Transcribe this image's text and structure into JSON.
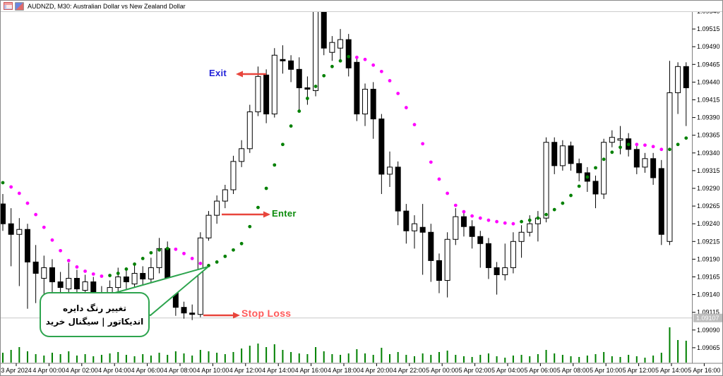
{
  "header": {
    "title": "AUDNZD, M30:  Australian Dollar vs New Zealand Dollar"
  },
  "annotations": {
    "exit_label": "Exit",
    "enter_label": "Enter",
    "stop_loss_label": "Stop Loss",
    "callout_line1": "تغییر رنگ دایره",
    "callout_line2": "اندیکاتور | سیگنال خرید"
  },
  "chart_data": {
    "type": "candlestick",
    "symbol": "AUDNZD",
    "timeframe": "M30",
    "current_price_label": "1.09107",
    "stop_loss_price": 1.09107,
    "colors": {
      "candle_up": "#ffffff",
      "candle_down": "#000000",
      "candle_outline": "#000000",
      "dot_up": "#008000",
      "dot_down": "#ff00ff",
      "volume": "#008000",
      "arrow": "#e8453c",
      "stop_line": "#c9c9c9",
      "axis_line": "#808080",
      "price_tag_bg": "#bdbdbd",
      "callout_border": "#2da44e"
    },
    "price_ticks": [
      "1.09540",
      "1.09515",
      "1.09490",
      "1.09465",
      "1.09440",
      "1.09415",
      "1.09390",
      "1.09365",
      "1.09340",
      "1.09315",
      "1.09290",
      "1.09265",
      "1.09240",
      "1.09215",
      "1.09190",
      "1.09165",
      "1.09140",
      "1.09115",
      "1.09090",
      "1.09065"
    ],
    "time_ticks": [
      "3 Apr 2024",
      "4 Apr 00:00",
      "4 Apr 02:00",
      "4 Apr 04:00",
      "4 Apr 06:00",
      "4 Apr 08:00",
      "4 Apr 10:00",
      "4 Apr 12:00",
      "4 Apr 14:00",
      "4 Apr 16:00",
      "4 Apr 18:00",
      "4 Apr 20:00",
      "4 Apr 22:00",
      "5 Apr 00:00",
      "5 Apr 02:00",
      "5 Apr 04:00",
      "5 Apr 06:00",
      "5 Apr 08:00",
      "5 Apr 10:00",
      "5 Apr 12:00",
      "5 Apr 14:00",
      "5 Apr 16:00"
    ],
    "candles": [
      [
        1.09268,
        1.09282,
        1.0923,
        1.0924
      ],
      [
        1.0924,
        1.09262,
        1.0918,
        1.09225
      ],
      [
        1.09225,
        1.09248,
        1.09152,
        1.09232
      ],
      [
        1.09232,
        1.0924,
        1.0912,
        1.09186
      ],
      [
        1.09186,
        1.0921,
        1.09128,
        1.0917
      ],
      [
        1.09163,
        1.09195,
        1.0914,
        1.09178
      ],
      [
        1.09178,
        1.0919,
        1.09125,
        1.09158
      ],
      [
        1.09158,
        1.09172,
        1.09118,
        1.0915
      ],
      [
        1.09148,
        1.09185,
        1.09132,
        1.09163
      ],
      [
        1.09163,
        1.09175,
        1.09122,
        1.09148
      ],
      [
        1.09146,
        1.09168,
        1.09135,
        1.09158
      ],
      [
        1.09158,
        1.09165,
        1.09116,
        1.0914
      ],
      [
        1.0914,
        1.09152,
        1.09112,
        1.09128
      ],
      [
        1.09128,
        1.0916,
        1.0912,
        1.0915
      ],
      [
        1.0915,
        1.09178,
        1.09142,
        1.09165
      ],
      [
        1.09165,
        1.09175,
        1.09145,
        1.09158
      ],
      [
        1.09155,
        1.09185,
        1.09146,
        1.0917
      ],
      [
        1.0917,
        1.0918,
        1.09138,
        1.09162
      ],
      [
        1.09162,
        1.09192,
        1.0915,
        1.09178
      ],
      [
        1.09178,
        1.0922,
        1.0917,
        1.09205
      ],
      [
        1.09205,
        1.09215,
        1.09145,
        1.09152
      ],
      [
        1.09152,
        1.09158,
        1.0911,
        1.09122
      ],
      [
        1.09122,
        1.0913,
        1.09106,
        1.09114
      ],
      [
        1.09114,
        1.09126,
        1.09104,
        1.09112
      ],
      [
        1.09112,
        1.09228,
        1.09108,
        1.0922
      ],
      [
        1.0922,
        1.09258,
        1.09216,
        1.09252
      ],
      [
        1.09252,
        1.0928,
        1.0924,
        1.09272
      ],
      [
        1.09272,
        1.09295,
        1.09262,
        1.09288
      ],
      [
        1.09288,
        1.09336,
        1.09282,
        1.09328
      ],
      [
        1.09328,
        1.09358,
        1.0932,
        1.09346
      ],
      [
        1.09346,
        1.09408,
        1.0934,
        1.09398
      ],
      [
        1.09398,
        1.09462,
        1.09392,
        1.09448
      ],
      [
        1.0945,
        1.09458,
        1.09382,
        1.09395
      ],
      [
        1.09395,
        1.09488,
        1.0939,
        1.09478
      ],
      [
        1.09472,
        1.09492,
        1.09452,
        1.0947
      ],
      [
        1.0947,
        1.09478,
        1.0944,
        1.09458
      ],
      [
        1.09458,
        1.09475,
        1.09398,
        1.09432
      ],
      [
        1.09432,
        1.09448,
        1.09408,
        1.0943
      ],
      [
        1.09428,
        1.09548,
        1.0942,
        1.0954
      ],
      [
        1.0954,
        1.09545,
        1.09478,
        1.09488
      ],
      [
        1.09482,
        1.09505,
        1.0947,
        1.09496
      ],
      [
        1.09488,
        1.09515,
        1.09472,
        1.095
      ],
      [
        1.095,
        1.09508,
        1.09448,
        1.0946
      ],
      [
        1.09468,
        1.09475,
        1.09385,
        1.09395
      ],
      [
        1.09395,
        1.09438,
        1.09378,
        1.0943
      ],
      [
        1.0943,
        1.0944,
        1.0936,
        1.09388
      ],
      [
        1.09388,
        1.09395,
        1.09282,
        1.0931
      ],
      [
        1.0931,
        1.09342,
        1.09292,
        1.0932
      ],
      [
        1.0932,
        1.09328,
        1.09238,
        1.09258
      ],
      [
        1.09258,
        1.09268,
        1.09212,
        1.0923
      ],
      [
        1.0923,
        1.09252,
        1.09205,
        1.0924
      ],
      [
        1.09235,
        1.09268,
        1.09168,
        1.09228
      ],
      [
        1.09228,
        1.0924,
        1.09158,
        1.09188
      ],
      [
        1.09188,
        1.09198,
        1.09142,
        1.0916
      ],
      [
        1.0916,
        1.09228,
        1.09136,
        1.09218
      ],
      [
        1.09218,
        1.09262,
        1.0921,
        1.0925
      ],
      [
        1.0925,
        1.09258,
        1.09222,
        1.09236
      ],
      [
        1.09236,
        1.09245,
        1.09205,
        1.09222
      ],
      [
        1.09222,
        1.0923,
        1.09178,
        1.09212
      ],
      [
        1.09212,
        1.0922,
        1.09162,
        1.09178
      ],
      [
        1.09178,
        1.09186,
        1.0914,
        1.09168
      ],
      [
        1.09168,
        1.09212,
        1.0916,
        1.09178
      ],
      [
        1.09178,
        1.09228,
        1.0917,
        1.09215
      ],
      [
        1.09215,
        1.09238,
        1.09192,
        1.09228
      ],
      [
        1.09228,
        1.09252,
        1.09222,
        1.0924
      ],
      [
        1.0924,
        1.09258,
        1.09215,
        1.09248
      ],
      [
        1.09248,
        1.09362,
        1.09242,
        1.09355
      ],
      [
        1.09355,
        1.09362,
        1.0931,
        1.09322
      ],
      [
        1.09322,
        1.09358,
        1.09315,
        1.0935
      ],
      [
        1.0935,
        1.09356,
        1.09315,
        1.09325
      ],
      [
        1.09325,
        1.09332,
        1.093,
        1.09312
      ],
      [
        1.09312,
        1.0932,
        1.09285,
        1.093
      ],
      [
        1.093,
        1.09308,
        1.09262,
        1.09282
      ],
      [
        1.09282,
        1.0936,
        1.09275,
        1.09355
      ],
      [
        1.09355,
        1.09372,
        1.09348,
        1.09362
      ],
      [
        1.09358,
        1.09378,
        1.09338,
        1.0936
      ],
      [
        1.0936,
        1.09368,
        1.09335,
        1.09345
      ],
      [
        1.09345,
        1.09352,
        1.0931,
        1.0932
      ],
      [
        1.0932,
        1.0934,
        1.09312,
        1.09332
      ],
      [
        1.09332,
        1.0934,
        1.09295,
        1.09305
      ],
      [
        1.09318,
        1.0933,
        1.0921,
        1.09225
      ],
      [
        1.09215,
        1.0947,
        1.0921,
        1.09425
      ],
      [
        1.09425,
        1.09468,
        1.09395,
        1.09462
      ],
      [
        1.09462,
        1.09468,
        1.09378,
        1.09432
      ]
    ],
    "dots": [
      [
        1.09298,
        "g"
      ],
      [
        1.09292,
        "m"
      ],
      [
        1.09283,
        "m"
      ],
      [
        1.09269,
        "m"
      ],
      [
        1.09253,
        "m"
      ],
      [
        1.09235,
        "m"
      ],
      [
        1.09217,
        "m"
      ],
      [
        1.09202,
        "m"
      ],
      [
        1.09188,
        "m"
      ],
      [
        1.09179,
        "m"
      ],
      [
        1.09173,
        "m"
      ],
      [
        1.09169,
        "m"
      ],
      [
        1.09166,
        "m"
      ],
      [
        1.09167,
        "g"
      ],
      [
        1.0917,
        "g"
      ],
      [
        1.09176,
        "g"
      ],
      [
        1.09183,
        "g"
      ],
      [
        1.09191,
        "g"
      ],
      [
        1.09199,
        "g"
      ],
      [
        1.09203,
        "g"
      ],
      [
        1.09205,
        "g"
      ],
      [
        1.09204,
        "m"
      ],
      [
        1.09198,
        "m"
      ],
      [
        1.09191,
        "m"
      ],
      [
        1.09184,
        "m"
      ],
      [
        1.09181,
        "g"
      ],
      [
        1.09186,
        "g"
      ],
      [
        1.09194,
        "g"
      ],
      [
        1.09203,
        "g"
      ],
      [
        1.09212,
        "g"
      ],
      [
        1.09236,
        "g"
      ],
      [
        1.09263,
        "g"
      ],
      [
        1.0929,
        "g"
      ],
      [
        1.09323,
        "g"
      ],
      [
        1.09352,
        "g"
      ],
      [
        1.09378,
        "g"
      ],
      [
        1.09399,
        "g"
      ],
      [
        1.09417,
        "g"
      ],
      [
        1.09434,
        "g"
      ],
      [
        1.09449,
        "g"
      ],
      [
        1.09462,
        "g"
      ],
      [
        1.0947,
        "g"
      ],
      [
        1.09476,
        "g"
      ],
      [
        1.09475,
        "m"
      ],
      [
        1.09472,
        "m"
      ],
      [
        1.09464,
        "m"
      ],
      [
        1.09455,
        "m"
      ],
      [
        1.09442,
        "m"
      ],
      [
        1.09424,
        "m"
      ],
      [
        1.09404,
        "m"
      ],
      [
        1.0938,
        "m"
      ],
      [
        1.09353,
        "m"
      ],
      [
        1.09327,
        "m"
      ],
      [
        1.09303,
        "m"
      ],
      [
        1.09283,
        "m"
      ],
      [
        1.09266,
        "m"
      ],
      [
        1.09257,
        "m"
      ],
      [
        1.09251,
        "m"
      ],
      [
        1.09248,
        "m"
      ],
      [
        1.09245,
        "m"
      ],
      [
        1.09243,
        "m"
      ],
      [
        1.09241,
        "m"
      ],
      [
        1.0924,
        "m"
      ],
      [
        1.09243,
        "g"
      ],
      [
        1.09245,
        "g"
      ],
      [
        1.09248,
        "g"
      ],
      [
        1.09253,
        "g"
      ],
      [
        1.0926,
        "g"
      ],
      [
        1.09269,
        "g"
      ],
      [
        1.0928,
        "g"
      ],
      [
        1.09293,
        "g"
      ],
      [
        1.09306,
        "g"
      ],
      [
        1.09319,
        "g"
      ],
      [
        1.09331,
        "g"
      ],
      [
        1.09341,
        "g"
      ],
      [
        1.09348,
        "g"
      ],
      [
        1.09352,
        "g"
      ],
      [
        1.09352,
        "m"
      ],
      [
        1.09351,
        "m"
      ],
      [
        1.09349,
        "m"
      ],
      [
        1.09345,
        "m"
      ],
      [
        1.09345,
        "g"
      ],
      [
        1.09352,
        "g"
      ],
      [
        1.09361,
        "g"
      ]
    ],
    "volumes": [
      14,
      18,
      22,
      16,
      12,
      10,
      14,
      12,
      16,
      10,
      12,
      9,
      11,
      13,
      15,
      11,
      9,
      12,
      10,
      14,
      11,
      16,
      13,
      10,
      18,
      16,
      14,
      12,
      15,
      20,
      24,
      27,
      22,
      26,
      18,
      15,
      13,
      12,
      22,
      16,
      12,
      11,
      13,
      19,
      13,
      11,
      21,
      12,
      15,
      11,
      9,
      13,
      11,
      15,
      17,
      11,
      9,
      8,
      11,
      13,
      9,
      7,
      10,
      11,
      9,
      12,
      18,
      13,
      11,
      9,
      8,
      10,
      12,
      15,
      9,
      8,
      11,
      9,
      7,
      10,
      14,
      50,
      32,
      31
    ]
  }
}
